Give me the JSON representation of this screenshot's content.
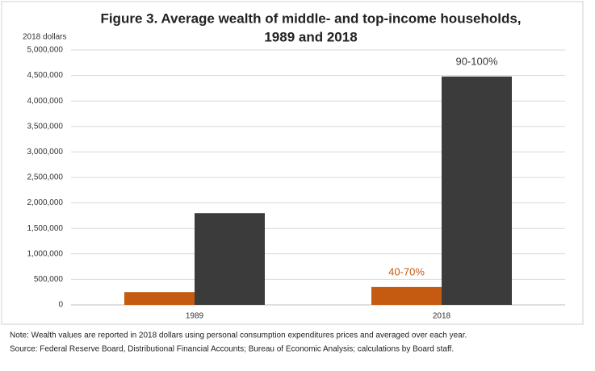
{
  "chart_data": {
    "type": "bar",
    "title": "Figure 3.  Average wealth of middle- and top-income households,",
    "subtitle": "1989 and 2018",
    "ylabel": "2018 dollars",
    "categories": [
      "1989",
      "2018"
    ],
    "series": [
      {
        "name": "40-70%",
        "color": "#c55a11",
        "values": [
          250000,
          350000
        ]
      },
      {
        "name": "90-100%",
        "color": "#3b3b3b",
        "values": [
          1800000,
          4480000
        ]
      }
    ],
    "ylim": [
      0,
      5000000
    ],
    "yticks": [
      0,
      {
        "value": 500000,
        "label": "500,000"
      },
      {
        "value": 1000000,
        "label": "1,000,000"
      },
      {
        "value": 1500000,
        "label": "1,500,000"
      },
      {
        "value": 2000000,
        "label": "2,000,000"
      },
      {
        "value": 2500000,
        "label": "2,500,000"
      },
      {
        "value": 3000000,
        "label": "3,000,000"
      },
      {
        "value": 3500000,
        "label": "3,500,000"
      },
      {
        "value": 4000000,
        "label": "4,000,000"
      },
      {
        "value": 4500000,
        "label": "4,500,000"
      },
      {
        "value": 5000000,
        "label": "5,000,000"
      }
    ],
    "grid": true,
    "note": "Note:  Wealth values are reported in 2018 dollars using personal consumption expenditures prices and averaged over each year.",
    "source": "Source:  Federal Reserve Board, Distributional Financial Accounts; Bureau of Economic Analysis; calculations by Board staff."
  }
}
